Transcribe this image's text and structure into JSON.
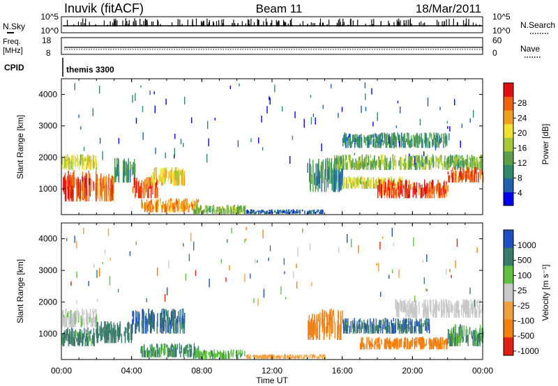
{
  "header": {
    "station": "Inuvik (fitACF)",
    "beam": "Beam 11",
    "date": "18/Mar/2011"
  },
  "top_panels": {
    "nsky_label": "N.Sky",
    "nsky_ticks": [
      "10^5",
      "10^0"
    ],
    "nsearch_label": "N.Search",
    "nsearch_ticks": [
      "10^5",
      "10^0"
    ],
    "freq_label": "Freq.",
    "freq_unit": "[MHz]",
    "freq_ticks": [
      "18",
      "8"
    ],
    "nave_label": "Nave",
    "nave_ticks": [
      "60",
      "0"
    ],
    "cpid_label": "CPID",
    "cpid_value": "themis 3300"
  },
  "x_axis": {
    "title": "Time UT",
    "tick_labels": [
      "00:00",
      "04:00",
      "08:00",
      "12:00",
      "16:00",
      "20:00",
      "00:00"
    ]
  },
  "power_scale": {
    "title": "Power [dB]",
    "tick_labels": [
      "28",
      "24",
      "20",
      "16",
      "12",
      "8",
      "4"
    ]
  },
  "velocity_scale": {
    "title": "Velocity [m s⁻¹]",
    "tick_labels": [
      "1000",
      "500",
      "100",
      "25",
      "-25",
      "-100",
      "-500",
      "-1000"
    ]
  },
  "chart_data": [
    {
      "type": "heatmap",
      "name": "power",
      "ylabel": "Slant Range [km]",
      "xlabel": "",
      "x_range_hours": [
        0,
        24
      ],
      "ylim": [
        180,
        4500
      ],
      "yticks": [
        1000,
        2000,
        3000,
        4000
      ],
      "colorbar_range": [
        0,
        32
      ],
      "colors": [
        "#0000ee",
        "#2060b0",
        "#2e8a6a",
        "#5aa04a",
        "#a8c83a",
        "#f0e030",
        "#f0a020",
        "#f06010",
        "#e01010"
      ],
      "regions": [
        {
          "t": [
            0.0,
            2.0
          ],
          "r": [
            600,
            1600
          ],
          "v": 28
        },
        {
          "t": [
            0.0,
            2.0
          ],
          "r": [
            1600,
            2100
          ],
          "v": 18
        },
        {
          "t": [
            2.0,
            3.0
          ],
          "r": [
            600,
            1500
          ],
          "v": 26
        },
        {
          "t": [
            3.0,
            4.2
          ],
          "r": [
            1200,
            2000
          ],
          "v": 10
        },
        {
          "t": [
            4.0,
            5.5
          ],
          "r": [
            700,
            1400
          ],
          "v": 27
        },
        {
          "t": [
            5.0,
            7.0
          ],
          "r": [
            1100,
            1700
          ],
          "v": 20
        },
        {
          "t": [
            4.5,
            7.8
          ],
          "r": [
            250,
            700
          ],
          "v": 24
        },
        {
          "t": [
            7.5,
            10.5
          ],
          "r": [
            200,
            500
          ],
          "v": 14
        },
        {
          "t": [
            10.5,
            15.0
          ],
          "r": [
            200,
            350
          ],
          "v": 6
        },
        {
          "t": [
            14.0,
            16.0
          ],
          "r": [
            900,
            2000
          ],
          "v": 9
        },
        {
          "t": [
            16.0,
            19.5
          ],
          "r": [
            1000,
            1400
          ],
          "v": 18
        },
        {
          "t": [
            18.0,
            22.0
          ],
          "r": [
            700,
            1300
          ],
          "v": 28
        },
        {
          "t": [
            15.5,
            24.0
          ],
          "r": [
            1600,
            2100
          ],
          "v": 14
        },
        {
          "t": [
            16.0,
            22.0
          ],
          "r": [
            2300,
            2800
          ],
          "v": 10
        },
        {
          "t": [
            22.0,
            24.0
          ],
          "r": [
            1200,
            1700
          ],
          "v": 27
        }
      ]
    },
    {
      "type": "heatmap",
      "name": "velocity",
      "ylabel": "Slant Range [km]",
      "xlabel": "Time UT",
      "x_range_hours": [
        0,
        24
      ],
      "ylim": [
        180,
        4500
      ],
      "yticks": [
        1000,
        2000,
        3000,
        4000
      ],
      "colorbar_labels": [
        "1000",
        "500",
        "100",
        "25",
        "-25",
        "-100",
        "-500",
        "-1000"
      ],
      "colors": [
        "#2050c0",
        "#3a7a6a",
        "#60c040",
        "#c8c8c8",
        "#f0a040",
        "#f08010",
        "#e02010"
      ],
      "regions": [
        {
          "t": [
            0.0,
            2.0
          ],
          "r": [
            600,
            1200
          ],
          "v": 150
        },
        {
          "t": [
            0.0,
            2.0
          ],
          "r": [
            1200,
            1800
          ],
          "v": 20
        },
        {
          "t": [
            2.0,
            4.0
          ],
          "r": [
            700,
            1400
          ],
          "v": 300
        },
        {
          "t": [
            4.0,
            7.0
          ],
          "r": [
            1000,
            1800
          ],
          "v": 450
        },
        {
          "t": [
            4.5,
            7.8
          ],
          "r": [
            250,
            700
          ],
          "v": 120
        },
        {
          "t": [
            7.5,
            10.5
          ],
          "r": [
            200,
            500
          ],
          "v": 80
        },
        {
          "t": [
            10.5,
            15.0
          ],
          "r": [
            200,
            350
          ],
          "v": -60
        },
        {
          "t": [
            14.0,
            16.0
          ],
          "r": [
            800,
            1800
          ],
          "v": -150
        },
        {
          "t": [
            16.0,
            21.0
          ],
          "r": [
            1000,
            1500
          ],
          "v": 450
        },
        {
          "t": [
            17.0,
            22.0
          ],
          "r": [
            500,
            900
          ],
          "v": -300
        },
        {
          "t": [
            19.0,
            24.0
          ],
          "r": [
            1500,
            2100
          ],
          "v": 15
        },
        {
          "t": [
            22.0,
            24.0
          ],
          "r": [
            600,
            1300
          ],
          "v": 120
        }
      ]
    }
  ]
}
